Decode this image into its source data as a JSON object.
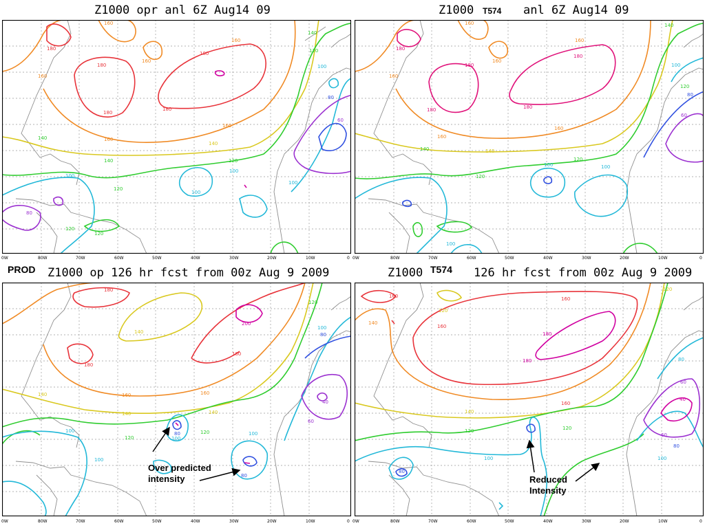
{
  "titles": {
    "top_left": "Z1000 opr anl 6Z Aug14 09",
    "top_right_a": "Z1000",
    "top_right_tag": "T574",
    "top_right_b": "anl 6Z Aug14 09",
    "bottom_left_tag": "PROD",
    "bottom_left": "Z1000 op 126 hr fcst from 00z Aug 9 2009",
    "bottom_right_a": "Z1000",
    "bottom_right_tag": "T574",
    "bottom_right_b": "126 hr fcst from 00z Aug 9 2009"
  },
  "x_axis_ticks": [
    "0W",
    "80W",
    "70W",
    "60W",
    "50W",
    "40W",
    "30W",
    "20W",
    "10W",
    "0"
  ],
  "annotations": {
    "over_predicted": "Over predicted intensity",
    "over_predicted_l1": "Over predicted",
    "over_predicted_l2": "intensity",
    "reduced_l1": "Reduced",
    "reduced_l2": "Intensity"
  },
  "contour_labels": {
    "c200": "200",
    "c180": "180",
    "c160": "160",
    "c140": "140",
    "c120": "120",
    "c100": "100",
    "c80": "80",
    "c60": "60",
    "c40": "40"
  },
  "colors": {
    "c200": "#d000a0",
    "c180": "#e8333a",
    "c160": "#f08a24",
    "c140": "#d9c81e",
    "c120": "#2ecc2e",
    "c100": "#22b8d8",
    "c80": "#3050e0",
    "c60": "#9b30d0",
    "c40": "#d000a0",
    "t180": "#e0127a",
    "coast": "#8e8e8e"
  }
}
